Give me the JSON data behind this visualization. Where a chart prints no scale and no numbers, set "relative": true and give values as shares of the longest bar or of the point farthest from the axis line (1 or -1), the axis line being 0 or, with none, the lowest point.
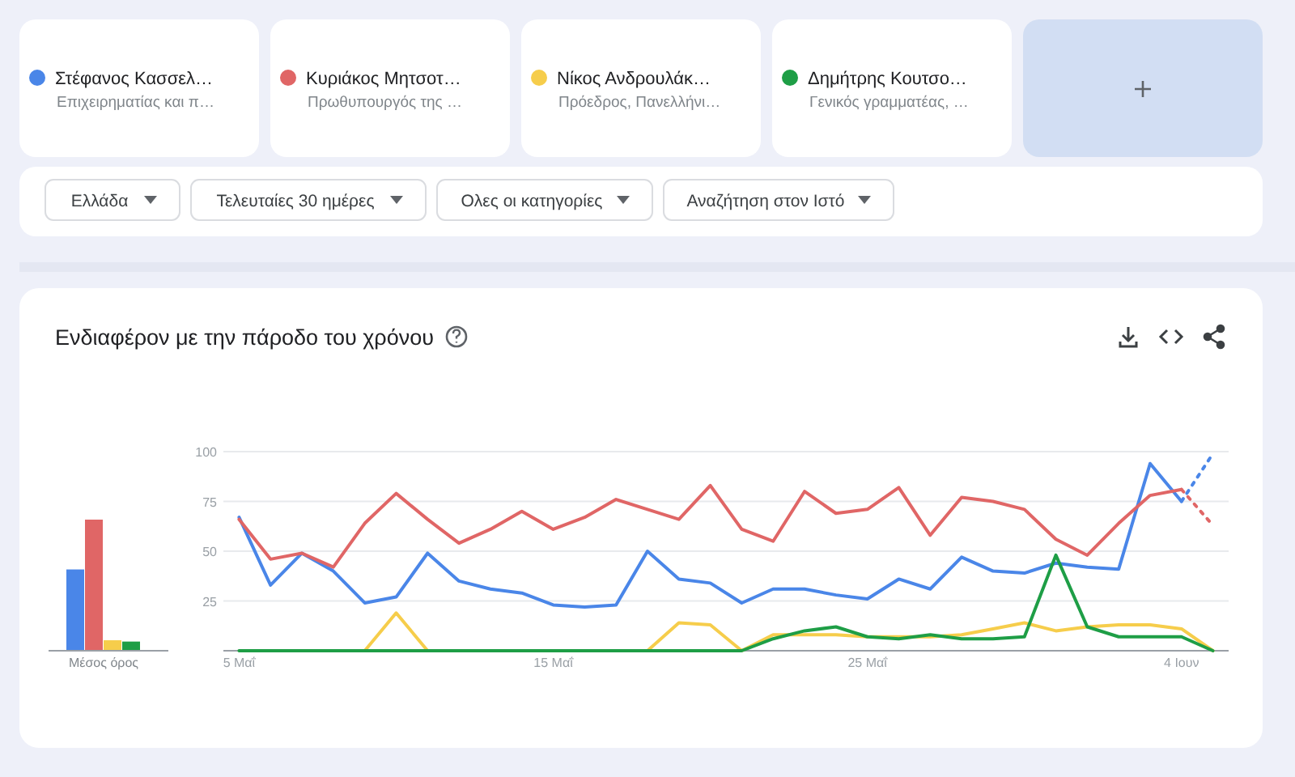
{
  "chart_data": [
    {
      "type": "other",
      "annotations": [
        "Επιχειρηματίας και π…",
        "Πρωθυπουργός της …",
        "Πρόεδρος, Πανελλήνι…",
        "Γενικός γραμματέας, …",
        "Ελλάδα",
        "Τελευταίες 30 ημέρες",
        "Ολες οι κατηγορίες",
        "Αναζήτηση στον Ιστό"
      ]
    },
    {
      "type": "bar",
      "relative": true,
      "categories": [
        "Μέσος όρος"
      ],
      "legend": false,
      "series": [
        {
          "color": "#4a86e8",
          "values": [
            0.62
          ]
        },
        {
          "color": "#e06666",
          "values": [
            1
          ]
        },
        {
          "color": "#f6cd4b",
          "values": [
            0.08
          ]
        },
        {
          "color": "#1e9e46",
          "values": [
            0.07
          ]
        }
      ]
    },
    {
      "type": "line",
      "title": "Ενδιαφέρον με την πάροδο του χρόνου",
      "legend": "top",
      "grid": "y",
      "marker": "none",
      "x": [
        "--05-05",
        "--05-06",
        "--05-07",
        "--05-08",
        "--05-09",
        "--05-10",
        "--05-11",
        "--05-12",
        "--05-13",
        "--05-14",
        "--05-15",
        "--05-16",
        "--05-17",
        "--05-18",
        "--05-19",
        "--05-20",
        "--05-21",
        "--05-22",
        "--05-23",
        "--05-24",
        "--05-25",
        "--05-26",
        "--05-27",
        "--05-28",
        "--05-29",
        "--05-30",
        "--05-31",
        "--06-01",
        "--06-02",
        "--06-03",
        "--06-04",
        "--06-05"
      ],
      "xlim": [
        "--05-04T12:00",
        "--06-05T12:00"
      ],
      "xticks": [
        {
          "value": "--05-05",
          "label": "5 Μαΐ"
        },
        {
          "value": "--05-15",
          "label": "15 Μαΐ"
        },
        {
          "value": "--05-25",
          "label": "25 Μαΐ"
        },
        {
          "value": "--06-04",
          "label": "4 Ιουν"
        }
      ],
      "ylim": [
        0,
        100
      ],
      "yticks": [
        {
          "value": 0,
          "label": null
        },
        25,
        50,
        75,
        100
      ],
      "series": [
        {
          "name": "Στέφανος Κασσελ…",
          "color": "#4a86e8",
          "values": [
            67,
            33,
            49,
            40,
            24,
            27,
            49,
            35,
            31,
            29,
            23,
            22,
            23,
            50,
            36,
            34,
            24,
            31,
            31,
            28,
            26,
            36,
            31,
            47,
            40,
            39,
            44,
            42,
            41,
            94,
            75,
            null
          ]
        },
        {
          "name": "Κυριάκος Μητσοτ…",
          "color": "#e06666",
          "values": [
            66,
            46,
            49,
            42,
            64,
            79,
            66,
            54,
            61,
            70,
            61,
            67,
            76,
            71,
            66,
            83,
            61,
            55,
            80,
            69,
            71,
            82,
            58,
            77,
            75,
            71,
            56,
            48,
            64,
            78,
            81,
            null
          ]
        },
        {
          "name": "Νίκος Ανδρουλάκ…",
          "color": "#f6cd4b",
          "values": [
            null,
            null,
            null,
            null,
            0,
            19,
            0,
            null,
            null,
            null,
            null,
            null,
            null,
            0,
            14,
            13,
            0,
            8,
            8,
            8,
            7,
            7,
            7,
            8,
            11,
            14,
            10,
            12,
            13,
            13,
            11,
            0
          ]
        },
        {
          "name": "Δημήτρης Κουτσο…",
          "color": "#1e9e46",
          "values": [
            0,
            0,
            0,
            0,
            0,
            0,
            0,
            0,
            0,
            0,
            0,
            0,
            0,
            0,
            0,
            0,
            0,
            6,
            10,
            12,
            7,
            6,
            8,
            6,
            6,
            7,
            48,
            12,
            7,
            7,
            7,
            0
          ]
        },
        {
          "type": "line",
          "line_style": "dotted",
          "color": "#4a86e8",
          "x": [
            "--06-04",
            "--06-05"
          ],
          "values": [
            75,
            99
          ]
        },
        {
          "type": "line",
          "line_style": "dotted",
          "color": "#e06666",
          "x": [
            "--06-04",
            "--06-05"
          ],
          "values": [
            81,
            63
          ]
        }
      ]
    }
  ]
}
